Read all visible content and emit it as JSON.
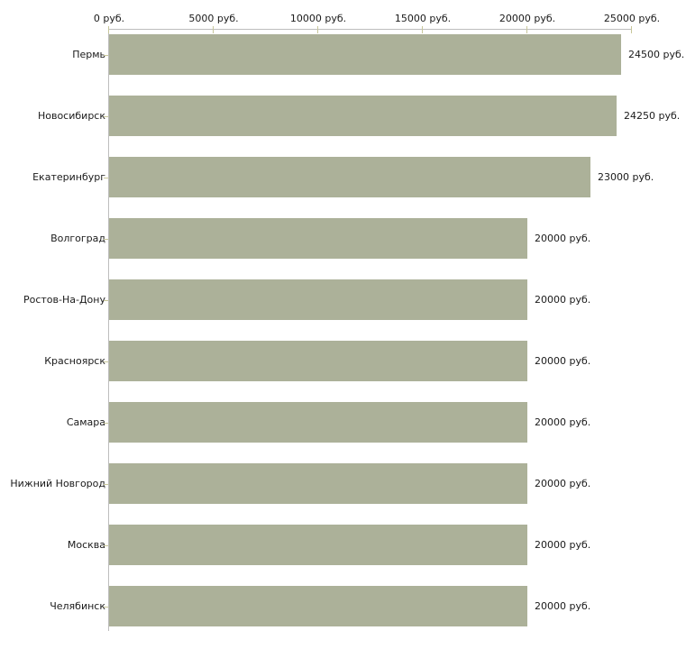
{
  "chart_data": {
    "type": "bar",
    "orientation": "horizontal",
    "title": "",
    "xlabel": "",
    "ylabel": "",
    "unit": "руб.",
    "categories": [
      "Пермь",
      "Новосибирск",
      "Екатеринбург",
      "Волгоград",
      "Ростов-На-Дону",
      "Красноярск",
      "Самара",
      "Нижний Новгород",
      "Москва",
      "Челябинск"
    ],
    "values": [
      24500,
      24250,
      23000,
      20000,
      20000,
      20000,
      20000,
      20000,
      20000,
      20000
    ],
    "value_labels": [
      "24500 руб.",
      "24250 руб.",
      "23000 руб.",
      "20000 руб.",
      "20000 руб.",
      "20000 руб.",
      "20000 руб.",
      "20000 руб.",
      "20000 руб.",
      "20000 руб."
    ],
    "x_axis": {
      "position": "top",
      "ticks": [
        0,
        5000,
        10000,
        15000,
        20000,
        25000
      ],
      "tick_labels": [
        "0 руб.",
        "5000 руб.",
        "10000 руб.",
        "15000 руб.",
        "20000 руб.",
        "25000 руб."
      ]
    },
    "xlim": [
      0,
      25000
    ],
    "grid": false,
    "legend": null,
    "colors": {
      "bar": "#acb199",
      "axis_line": "#bdbdbd",
      "tick_mark": "#c8c79a",
      "text": "#1a1a1a",
      "background": "#ffffff"
    }
  }
}
